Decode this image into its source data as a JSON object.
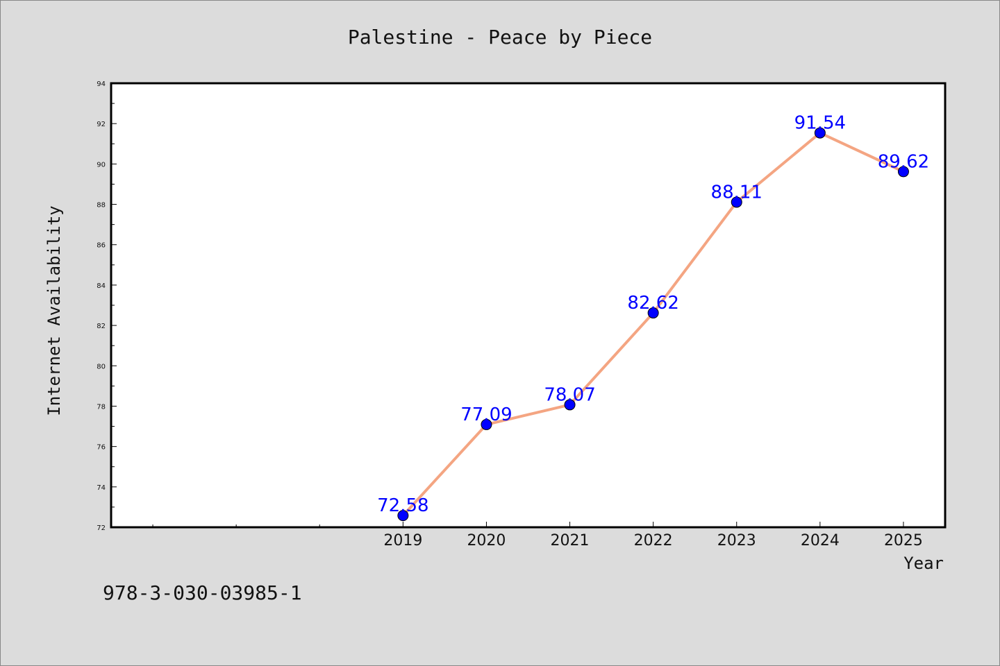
{
  "chart_data": {
    "type": "line",
    "title": "Palestine - Peace by Piece",
    "xlabel": "Year",
    "ylabel": "Internet Availability",
    "x": [
      "2019",
      "2020",
      "2021",
      "2022",
      "2023",
      "2024",
      "2025"
    ],
    "series": [
      {
        "values": [
          72.58,
          77.09,
          78.07,
          82.62,
          88.11,
          91.54,
          89.62
        ],
        "labels": [
          "72.58",
          "77.09",
          "78.07",
          "82.62",
          "88.11",
          "91.54",
          "89.62"
        ],
        "line_color": "#f4a582",
        "marker_color": "#0000ff"
      }
    ],
    "xlim": [
      2015.5,
      2025.5
    ],
    "ylim": [
      72,
      94
    ],
    "yticks": [
      "72",
      "74",
      "76",
      "78",
      "80",
      "82",
      "84",
      "86",
      "88",
      "90",
      "92",
      "94"
    ],
    "grid": false,
    "legend": "none"
  },
  "footnote": "978-3-030-03985-1"
}
